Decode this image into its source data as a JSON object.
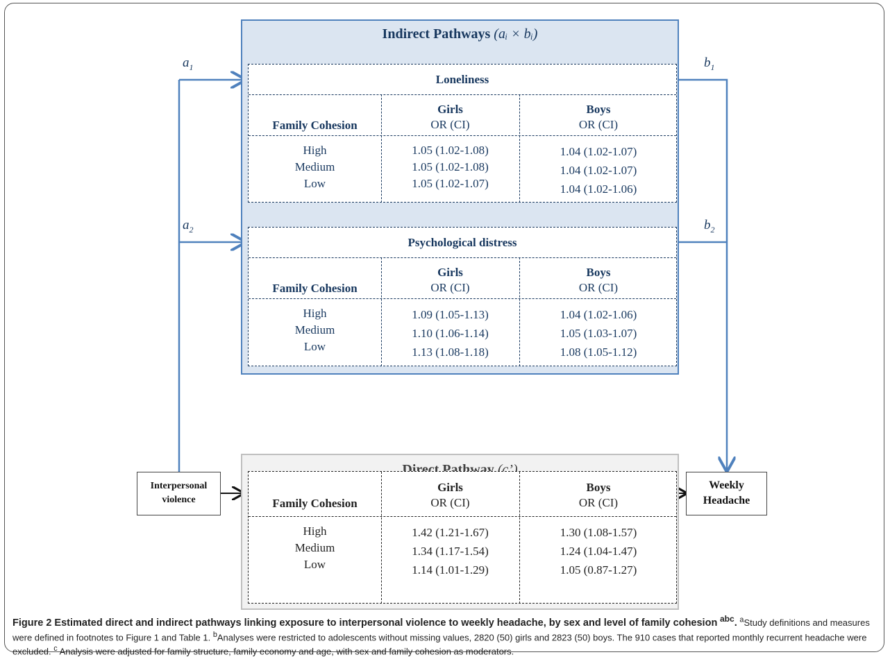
{
  "indirect": {
    "title": "Indirect Pathways",
    "title_formula": "(aᵢ × bᵢ)",
    "mediators": [
      {
        "name": "Loneliness",
        "label_a": "a",
        "label_a_sub": "1",
        "label_b": "b",
        "label_b_sub": "1",
        "rows": [
          {
            "level": "High",
            "girls": "1.05 (1.02-1.08)",
            "boys": "1.04 (1.02-1.07)"
          },
          {
            "level": "Medium",
            "girls": "1.05 (1.02-1.08)",
            "boys": "1.04 (1.02-1.07)"
          },
          {
            "level": "Low",
            "girls": "1.05 (1.02-1.07)",
            "boys": "1.04 (1.02-1.06)"
          }
        ]
      },
      {
        "name": "Psychological distress",
        "label_a": "a",
        "label_a_sub": "2",
        "label_b": "b",
        "label_b_sub": "2",
        "rows": [
          {
            "level": "High",
            "girls": "1.09 (1.05-1.13)",
            "boys": "1.04 (1.02-1.06)"
          },
          {
            "level": "Medium",
            "girls": "1.10 (1.06-1.14)",
            "boys": "1.05 (1.03-1.07)"
          },
          {
            "level": "Low",
            "girls": "1.13 (1.08-1.18)",
            "boys": "1.08 (1.05-1.12)"
          }
        ]
      }
    ]
  },
  "direct": {
    "title": "Direct Pathway",
    "title_formula": "(c’)",
    "rows": [
      {
        "level": "High",
        "girls": "1.42 (1.21-1.67)",
        "boys": "1.30 (1.08-1.57)"
      },
      {
        "level": "Medium",
        "girls": "1.34 (1.17-1.54)",
        "boys": "1.24 (1.04-1.47)"
      },
      {
        "level": "Low",
        "girls": "1.14 (1.01-1.29)",
        "boys": "1.05 (0.87-1.27)"
      }
    ]
  },
  "columns": {
    "family_cohesion": "Family Cohesion",
    "girls": "Girls",
    "boys": "Boys",
    "or_ci": "OR (CI)"
  },
  "boxes": {
    "exposure_line1": "Interpersonal",
    "exposure_line2": "violence",
    "outcome_line1": "Weekly",
    "outcome_line2": "Headache"
  },
  "caption": {
    "bold": "Figure 2 Estimated direct and indirect pathways linking exposure to interpersonal violence to weekly headache, by sex and level of family cohesion",
    "bold_sup": "abc",
    "sup_a": "a",
    "note_a": "Study definitions and measures were defined in footnotes to Figure 1 and Table 1.",
    "sup_b": "b",
    "note_b": "Analyses were restricted to adolescents without missing values, 2820 (50) girls and 2823 (50) boys. The 910 cases that reported monthly recurrent headache were excluded.",
    "sup_c": "c",
    "note_c": "Analysis were adjusted for family structure, family economy and age, with sex and family cohesion as moderators."
  },
  "colors": {
    "indirect_fill": "#dbe5f1",
    "indirect_border": "#4f81bd",
    "arrow_blue": "#4f81bd",
    "direct_fill": "#f2f2f2",
    "text_navy": "#17375e"
  }
}
